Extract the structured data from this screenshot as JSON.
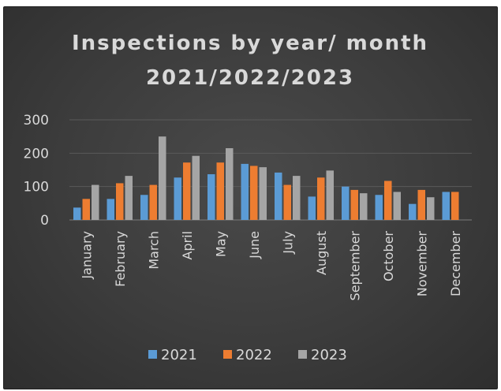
{
  "chart_data": {
    "type": "bar",
    "title_lines": [
      "Inspections by year/ month",
      "2021/2022/2023"
    ],
    "categories": [
      "January",
      "February",
      "March",
      "April",
      "May",
      "June",
      "July",
      "August",
      "September",
      "October",
      "November",
      "December"
    ],
    "series": [
      {
        "name": "2021",
        "color": "#5b9bd5",
        "values": [
          37,
          63,
          75,
          127,
          137,
          168,
          142,
          70,
          100,
          75,
          48,
          84
        ]
      },
      {
        "name": "2022",
        "color": "#ed7d31",
        "values": [
          63,
          110,
          105,
          172,
          172,
          162,
          105,
          127,
          90,
          117,
          90,
          84
        ]
      },
      {
        "name": "2023",
        "color": "#a5a5a5",
        "values": [
          105,
          132,
          250,
          192,
          215,
          158,
          132,
          148,
          80,
          84,
          68,
          null
        ]
      }
    ],
    "yticks": [
      0,
      100,
      200,
      300
    ],
    "ylim": [
      0,
      300
    ],
    "grid": true,
    "legend_position": "bottom",
    "colors": {
      "background": "#404040",
      "text": "#d9d9d9",
      "grid": "#5a5a5a"
    }
  }
}
